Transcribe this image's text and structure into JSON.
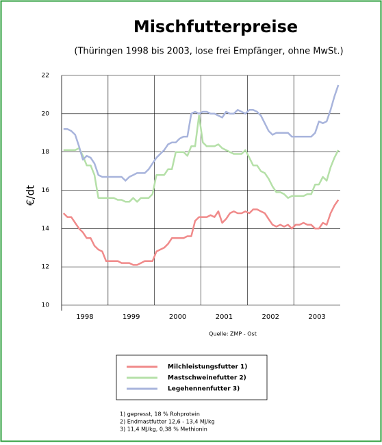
{
  "chart_data": {
    "type": "line",
    "title": "Mischfutterpreise",
    "subtitle": "(Thüringen 1998 bis 2003, lose frei Empfänger, ohne MwSt.)",
    "y_label": "€/dt",
    "source": "Quelle: ZMP - Ost",
    "notes": [
      "1) gepresst, 18 % Rohprotein",
      "2) Endmastfutter 12,6 - 13,4 MJ/kg",
      "3) 11,4 MJ/kg, 0,38 % Methionin"
    ],
    "categories": [
      null,
      null,
      null,
      null,
      null,
      null,
      "1998",
      null,
      null,
      null,
      null,
      null,
      null,
      null,
      null,
      null,
      null,
      null,
      "1999",
      null,
      null,
      null,
      null,
      null,
      null,
      null,
      null,
      null,
      null,
      null,
      "2000",
      null,
      null,
      null,
      null,
      null,
      null,
      null,
      null,
      null,
      null,
      null,
      "2001",
      null,
      null,
      null,
      null,
      null,
      null,
      null,
      null,
      null,
      null,
      null,
      "2002",
      null,
      null,
      null,
      null,
      null,
      null,
      null,
      null,
      null,
      null,
      null,
      "2003",
      null,
      null,
      null,
      null,
      null
    ],
    "ylim": [
      10,
      22
    ],
    "yticks": [
      10,
      12,
      14,
      16,
      18,
      20,
      22
    ],
    "grid": true,
    "series": [
      {
        "name": "Milchleistungsfutter 1)",
        "color": "#f08a8a",
        "values": [
          14.8,
          14.6,
          14.6,
          14.3,
          14.0,
          13.8,
          13.5,
          13.5,
          13.1,
          12.9,
          12.8,
          12.3,
          12.3,
          12.3,
          12.3,
          12.2,
          12.2,
          12.2,
          12.1,
          12.1,
          12.2,
          12.3,
          12.3,
          12.3,
          12.8,
          12.9,
          13.0,
          13.2,
          13.5,
          13.5,
          13.5,
          13.5,
          13.6,
          13.6,
          14.4,
          14.6,
          14.6,
          14.6,
          14.7,
          14.6,
          14.9,
          14.3,
          14.5,
          14.8,
          14.9,
          14.8,
          14.8,
          14.9,
          14.8,
          15.0,
          15.0,
          14.9,
          14.8,
          14.5,
          14.2,
          14.1,
          14.2,
          14.1,
          14.2,
          14.0,
          14.2,
          14.2,
          14.3,
          14.2,
          14.2,
          14.0,
          14.0,
          14.3,
          14.2,
          14.8,
          15.2,
          15.5
        ]
      },
      {
        "name": "Mastschweinefutter 2)",
        "color": "#b5e0a8",
        "values": [
          18.1,
          18.1,
          18.1,
          18.1,
          18.2,
          17.8,
          17.3,
          17.3,
          16.8,
          15.6,
          15.6,
          15.6,
          15.6,
          15.6,
          15.5,
          15.5,
          15.4,
          15.4,
          15.6,
          15.4,
          15.6,
          15.6,
          15.6,
          15.8,
          16.8,
          16.8,
          16.8,
          17.1,
          17.1,
          18.0,
          18.0,
          18.0,
          17.8,
          18.3,
          18.3,
          19.9,
          18.5,
          18.3,
          18.3,
          18.3,
          18.4,
          18.2,
          18.1,
          18.0,
          17.9,
          17.9,
          17.9,
          18.1,
          17.7,
          17.3,
          17.3,
          17.0,
          16.9,
          16.6,
          16.2,
          15.9,
          15.9,
          15.8,
          15.6,
          15.7,
          15.7,
          15.7,
          15.7,
          15.8,
          15.8,
          16.3,
          16.3,
          16.7,
          16.5,
          17.2,
          17.7,
          18.1
        ]
      },
      {
        "name": "Legehennenfutter 3)",
        "color": "#a8b4dc",
        "values": [
          19.2,
          19.2,
          19.1,
          18.9,
          18.3,
          17.6,
          17.8,
          17.7,
          17.4,
          16.8,
          16.7,
          16.7,
          16.7,
          16.7,
          16.7,
          16.7,
          16.5,
          16.7,
          16.8,
          16.9,
          16.9,
          16.9,
          17.1,
          17.4,
          17.7,
          17.9,
          18.1,
          18.4,
          18.5,
          18.5,
          18.7,
          18.8,
          18.8,
          20.0,
          20.1,
          20.0,
          20.1,
          20.1,
          20.0,
          20.0,
          19.9,
          19.8,
          20.1,
          20.0,
          20.0,
          20.2,
          20.1,
          20.0,
          20.2,
          20.2,
          20.1,
          19.9,
          19.5,
          19.1,
          18.9,
          19.0,
          19.0,
          19.0,
          19.0,
          18.8,
          18.8,
          18.8,
          18.8,
          18.8,
          18.8,
          19.0,
          19.6,
          19.5,
          19.6,
          20.2,
          20.9,
          21.5
        ]
      }
    ]
  }
}
